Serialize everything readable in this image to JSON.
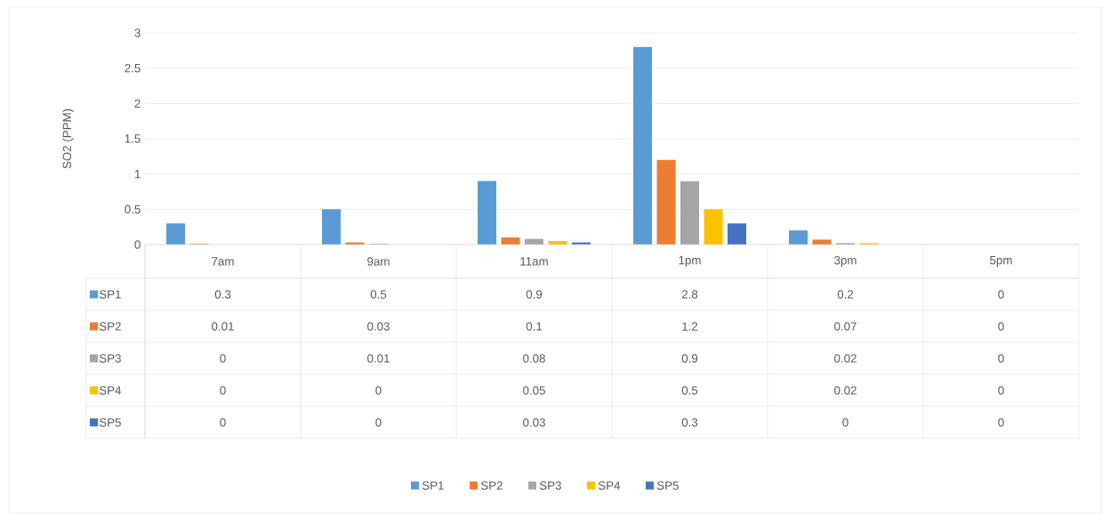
{
  "chart_data": {
    "type": "bar",
    "ylabel": "SO2 (PPM)",
    "categories": [
      "7am",
      "9am",
      "11am",
      "1pm",
      "3pm",
      "5pm"
    ],
    "series": [
      {
        "name": "SP1",
        "color": "#5b9bd5",
        "values": [
          0.3,
          0.5,
          0.9,
          2.8,
          0.2,
          0
        ]
      },
      {
        "name": "SP2",
        "color": "#ed7d31",
        "values": [
          0.01,
          0.03,
          0.1,
          1.2,
          0.07,
          0
        ]
      },
      {
        "name": "SP3",
        "color": "#a5a5a5",
        "values": [
          0,
          0.01,
          0.08,
          0.9,
          0.02,
          0
        ]
      },
      {
        "name": "SP4",
        "color": "#ffc000",
        "values": [
          0,
          0,
          0.05,
          0.5,
          0.02,
          0
        ]
      },
      {
        "name": "SP5",
        "color": "#4472c4",
        "values": [
          0,
          0,
          0.03,
          0.3,
          0,
          0
        ]
      }
    ],
    "ylim": [
      0,
      3
    ],
    "yticks": [
      0,
      0.5,
      1,
      1.5,
      2,
      2.5,
      3
    ],
    "grid": "y",
    "legend": "bottom",
    "data_labels": true
  }
}
